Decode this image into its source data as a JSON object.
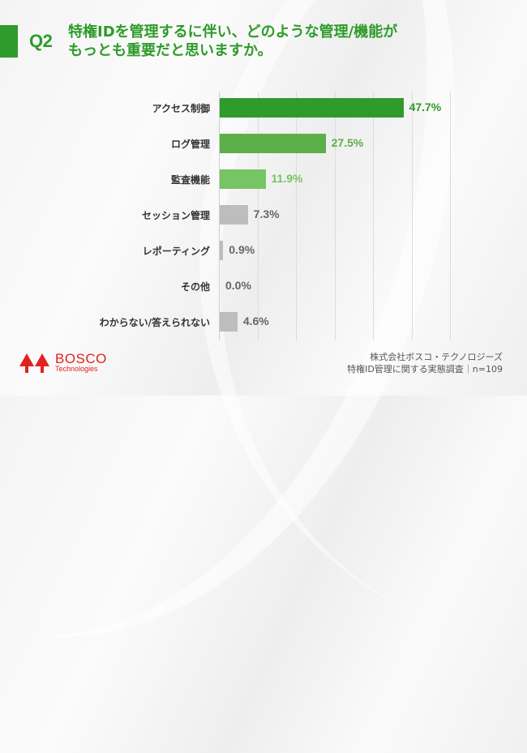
{
  "header": {
    "question_number": "Q2",
    "title_line1": "特権IDを管理するに伴い、どのような管理/機能が",
    "title_line2": "もっとも重要だと思いますか。"
  },
  "colors": {
    "primary_green": "#2e9b2a",
    "mid_green": "#5cb04a",
    "light_green": "#76c464",
    "gray": "#bdbdbd",
    "brand_red": "#e2221f"
  },
  "chart_data": {
    "type": "bar",
    "orientation": "horizontal",
    "title": "特権IDを管理するに伴い、どのような管理/機能がもっとも重要だと思いますか。",
    "categories": [
      "アクセス制御",
      "ログ管理",
      "監査機能",
      "セッション管理",
      "レポーティング",
      "その他",
      "わからない/答えられない"
    ],
    "values": [
      47.7,
      27.5,
      11.9,
      7.3,
      0.9,
      0.0,
      4.6
    ],
    "labels": [
      "47.7%",
      "27.5%",
      "11.9%",
      "7.3%",
      "0.9%",
      "0.0%",
      "4.6%"
    ],
    "bar_colors": [
      "#2e9b2a",
      "#5cb04a",
      "#76c464",
      "#bdbdbd",
      "#bdbdbd",
      "#bdbdbd",
      "#bdbdbd"
    ],
    "label_colors": [
      "#2e9b2a",
      "#5cb04a",
      "#76c464",
      "#666666",
      "#666666",
      "#666666",
      "#666666"
    ],
    "xlabel": "",
    "ylabel": "",
    "xlim": [
      0,
      60
    ],
    "grid": true,
    "gridline_step": 10,
    "legend": "none",
    "unit": "%"
  },
  "footer": {
    "logo_main": "BOSCO",
    "logo_sub": "Technologies",
    "source_line1": "株式会社ボスコ・テクノロジーズ",
    "source_line2": "特権ID管理に関する実態調査｜n=109"
  }
}
